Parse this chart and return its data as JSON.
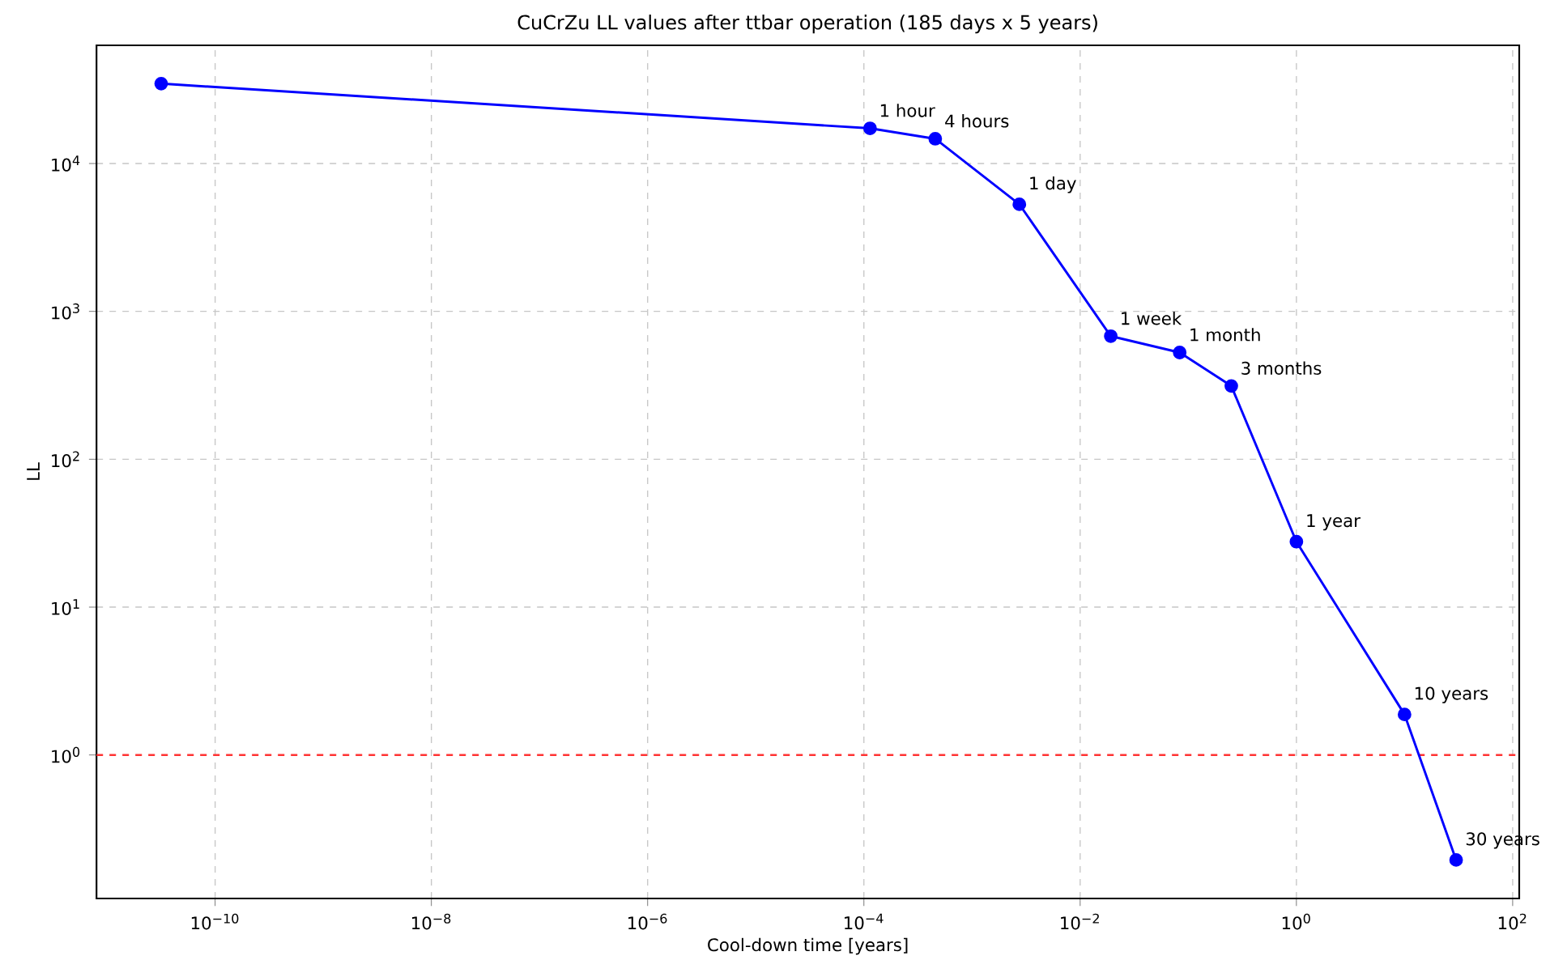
{
  "chart_data": {
    "type": "line",
    "title": "CuCrZu LL values after ttbar operation (185 days x 5 years)",
    "xlabel": "Cool-down time [years]",
    "ylabel": "LL",
    "x": [
      3.17e-11,
      0.000114,
      0.000457,
      0.00274,
      0.0192,
      0.0833,
      0.25,
      1,
      10,
      30
    ],
    "series": [
      {
        "color": "#0000ff",
        "values": [
          34700,
          17300,
          14700,
          5300,
          680,
          527,
          313,
          27.7,
          1.88,
          0.195
        ]
      }
    ],
    "marker": "circle",
    "line_style": "solid",
    "log": "xy",
    "grid": true,
    "xlim": [
      8e-12,
      115
    ],
    "ylim": [
      0.107,
      63000
    ],
    "xticks": [
      {
        "value": 1e-10,
        "label": "10$^{−10}$"
      },
      {
        "value": 1e-08,
        "label": "10$^{−8}$"
      },
      {
        "value": 1e-06,
        "label": "10$^{−6}$"
      },
      {
        "value": 0.0001,
        "label": "10$^{−4}$"
      },
      {
        "value": 0.01,
        "label": "10$^{−2}$"
      },
      {
        "value": 1,
        "label": "10$^{0}$"
      },
      {
        "value": 100,
        "label": "10$^{2}$"
      }
    ],
    "yticks": [
      {
        "value": 1,
        "label": "10$^{0}$"
      },
      {
        "value": 10,
        "label": "10$^{1}$"
      },
      {
        "value": 100,
        "label": "10$^{2}$"
      },
      {
        "value": 1000,
        "label": "10$^{3}$"
      },
      {
        "value": 10000,
        "label": "10$^{4}$"
      }
    ],
    "ref_lines": [
      {
        "axis": "y",
        "value": 1,
        "color": "#ff3333",
        "line_style": "dashed"
      }
    ],
    "annotations": [
      {
        "text": "1 hour",
        "x": 0.000114,
        "y": 17300
      },
      {
        "text": "4 hours",
        "x": 0.000457,
        "y": 14700
      },
      {
        "text": "1 day",
        "x": 0.00274,
        "y": 5300
      },
      {
        "text": "1 week",
        "x": 0.0192,
        "y": 680
      },
      {
        "text": "1 month",
        "x": 0.0833,
        "y": 527
      },
      {
        "text": "3 months",
        "x": 0.25,
        "y": 313
      },
      {
        "text": "1 year",
        "x": 1,
        "y": 27.7
      },
      {
        "text": "10 years",
        "x": 10,
        "y": 1.88
      },
      {
        "text": "30 years",
        "x": 30,
        "y": 0.195
      }
    ]
  }
}
